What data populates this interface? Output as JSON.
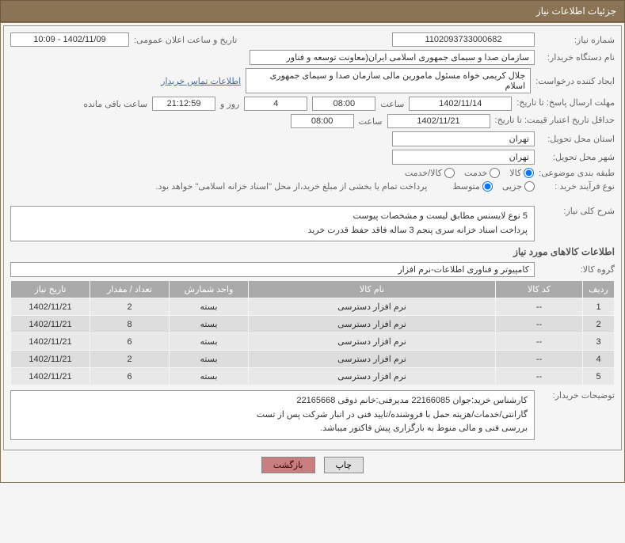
{
  "header": {
    "title": "جزئیات اطلاعات نیاز"
  },
  "form": {
    "need_no_lbl": "شماره نیاز:",
    "need_no": "1102093733000682",
    "announce_lbl": "تاریخ و ساعت اعلان عمومی:",
    "announce": "1402/11/09 - 10:09",
    "buyer_org_lbl": "نام دستگاه خریدار:",
    "buyer_org": "سازمان صدا و سیمای جمهوری اسلامی ایران(معاونت توسعه و فناور",
    "requester_lbl": "ایجاد کننده درخواست:",
    "requester": "جلال کریمی خواه مسئول مامورین مالی  سازمان صدا و سیمای جمهوری اسلام",
    "contact_link": "اطلاعات تماس خریدار",
    "deadline_send_lbl": "مهلت ارسال پاسخ: تا تاریخ:",
    "deadline_send_date": "1402/11/14",
    "hour_lbl": "ساعت",
    "deadline_send_time": "08:00",
    "days_val": "4",
    "days_and": "روز و",
    "remain_time": "21:12:59",
    "remain_lbl": "ساعت باقی مانده",
    "validity_lbl": "حداقل تاریخ اعتبار قیمت: تا تاریخ:",
    "validity_date": "1402/11/21",
    "validity_time": "08:00",
    "province_lbl": "استان محل تحویل:",
    "province": "تهران",
    "city_lbl": "شهر محل تحویل:",
    "city": "تهران",
    "subject_cat_lbl": "طبقه بندی موضوعی:",
    "subject_opts": {
      "goods": "کالا",
      "service": "خدمت",
      "goods_service": "کالا/خدمت"
    },
    "proc_type_lbl": "نوع فرآیند خرید :",
    "proc_opts": {
      "partial": "جزیی",
      "medium": "متوسط"
    },
    "treasury_note": "پرداخت تمام یا بخشی از مبلغ خرید،از محل \"اسناد خزانه اسلامی\" خواهد بود.",
    "overall_lbl": "شرح کلی نیاز:",
    "overall_desc_line1": "5 نوع لایسنس مطابق لیست و مشخصات پیوست",
    "overall_desc_line2": "پرداخت اسناد خزانه سری پنجم 3 ساله فاقد حفظ قدرت خرید",
    "goods_info_title": "اطلاعات کالاهای مورد نیاز",
    "goods_group_lbl": "گروه کالا:",
    "goods_group": "کامپیوتر و فناوری اطلاعات-نرم افزار",
    "buyer_notes_lbl": "توضیحات خریدار:",
    "buyer_notes_line1": "کارشناس خرید:جوان 22166085   مدیرفنی:خانم ذوقی 22165668",
    "buyer_notes_line2": "گارانتی/خدمات/هزینه حمل با فروشنده/تایید فنی در انبار شرکت پس از تست",
    "buyer_notes_line3": "بررسی فنی و مالی منوط به بارگزاری پیش فاکتور میباشد."
  },
  "table": {
    "headers": {
      "row": "ردیف",
      "code": "کد کالا",
      "name": "نام کالا",
      "unit": "واحد شمارش",
      "qty": "تعداد / مقدار",
      "need_date": "تاریخ نیاز"
    },
    "rows": [
      {
        "n": "1",
        "code": "--",
        "name": "نرم افزار دسترسی",
        "unit": "بسته",
        "qty": "2",
        "date": "1402/11/21"
      },
      {
        "n": "2",
        "code": "--",
        "name": "نرم افزار دسترسی",
        "unit": "بسته",
        "qty": "8",
        "date": "1402/11/21"
      },
      {
        "n": "3",
        "code": "--",
        "name": "نرم افزار دسترسی",
        "unit": "بسته",
        "qty": "6",
        "date": "1402/11/21"
      },
      {
        "n": "4",
        "code": "--",
        "name": "نرم افزار دسترسی",
        "unit": "بسته",
        "qty": "2",
        "date": "1402/11/21"
      },
      {
        "n": "5",
        "code": "--",
        "name": "نرم افزار دسترسی",
        "unit": "بسته",
        "qty": "6",
        "date": "1402/11/21"
      }
    ]
  },
  "buttons": {
    "print": "چاپ",
    "back": "بازگشت"
  },
  "colors": {
    "header_bg": "#8b7355",
    "th_bg": "#aaaaaa",
    "td_bg": "#e8e8e8"
  },
  "col_widths": {
    "row": "40px",
    "code": "110px",
    "name": "auto",
    "unit": "100px",
    "qty": "100px",
    "date": "100px"
  }
}
